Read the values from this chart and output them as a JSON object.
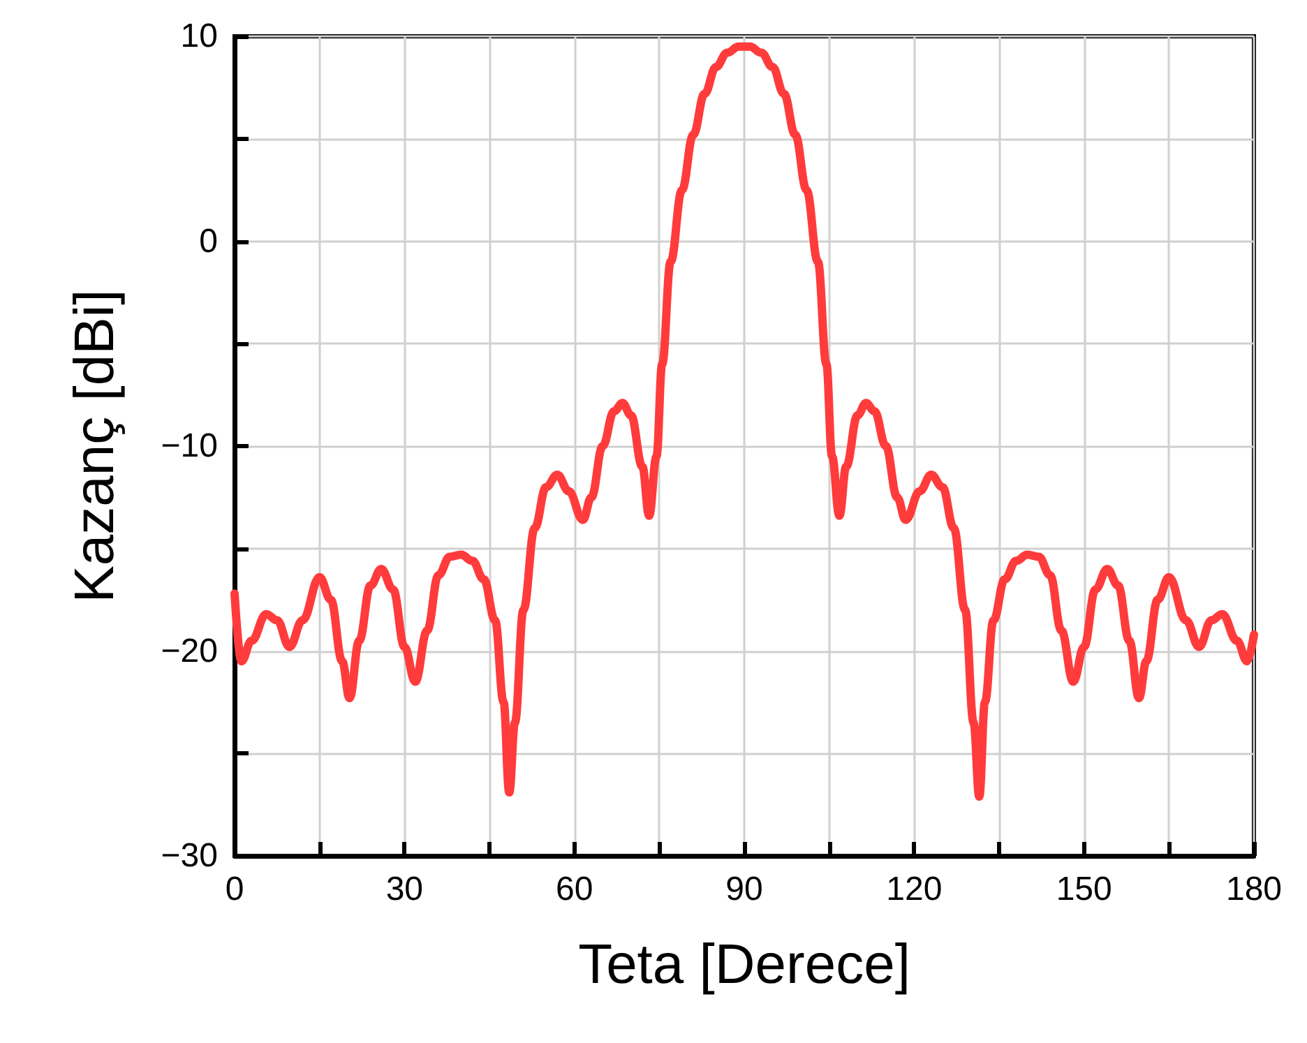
{
  "chart_data": {
    "type": "line",
    "xlabel": "Teta [Derece]",
    "ylabel": "Kazanç [dBi]",
    "xlim": [
      0,
      180
    ],
    "ylim": [
      -30,
      10
    ],
    "xticks": [
      0,
      {
        "value": 15,
        "label": null
      },
      30,
      {
        "value": 45,
        "label": null
      },
      60,
      {
        "value": 75,
        "label": null
      },
      90,
      {
        "value": 105,
        "label": null
      },
      120,
      {
        "value": 135,
        "label": null
      },
      150,
      {
        "value": 165,
        "label": null
      },
      180
    ],
    "yticks": [
      -30,
      {
        "value": -25,
        "label": null
      },
      -20,
      {
        "value": -15,
        "label": null
      },
      -10,
      {
        "value": -5,
        "label": null
      },
      0,
      {
        "value": 5,
        "label": null
      },
      10
    ],
    "grid": true,
    "marker": "none",
    "line_style": "solid",
    "series": [
      {
        "color": "#ff3b3b",
        "x": [
          0,
          1.2,
          3,
          5.6,
          7.5,
          9.7,
          12,
          15,
          17,
          19,
          20.3,
          22,
          24,
          25.9,
          28,
          30,
          31.9,
          34,
          36,
          38,
          40,
          42,
          44,
          46,
          47.5,
          48.5,
          49.5,
          51,
          53,
          55,
          57,
          59,
          61.5,
          63,
          65,
          67,
          68.5,
          70,
          72,
          73.2,
          74.5,
          75.5,
          77,
          79,
          81,
          83,
          85,
          87,
          89,
          90,
          91,
          93,
          95,
          97,
          99,
          101,
          103,
          104.5,
          105.5,
          106.8,
          108,
          110,
          111.5,
          113,
          115,
          117,
          118.5,
          121,
          123,
          125,
          127,
          129,
          130.5,
          131.5,
          132.5,
          134,
          136,
          138,
          140,
          142,
          144,
          146,
          148.1,
          150,
          152,
          154.1,
          156,
          158,
          159.7,
          161,
          163,
          165,
          168,
          170.3,
          172.5,
          174.4,
          177,
          178.8,
          180
        ],
        "values": [
          -17.2,
          -20.5,
          -19.5,
          -18.2,
          -18.5,
          -19.8,
          -18.5,
          -16.4,
          -17.5,
          -20.5,
          -22.3,
          -19.5,
          -16.8,
          -16.0,
          -17,
          -19.8,
          -21.5,
          -19,
          -16.3,
          -15.4,
          -15.3,
          -15.6,
          -16.5,
          -18.5,
          -22.5,
          -26.9,
          -23.5,
          -18,
          -14,
          -12,
          -11.4,
          -12.2,
          -13.6,
          -12.5,
          -10,
          -8.3,
          -7.9,
          -8.5,
          -11,
          -13.4,
          -10.5,
          -6,
          -1,
          2.5,
          5.2,
          7.2,
          8.5,
          9.2,
          9.5,
          9.5,
          9.5,
          9.2,
          8.5,
          7.2,
          5.2,
          2.5,
          -1,
          -6,
          -10.5,
          -13.4,
          -11,
          -8.5,
          -7.9,
          -8.3,
          -10,
          -12.5,
          -13.6,
          -12.2,
          -11.4,
          -12,
          -14,
          -18,
          -23.5,
          -27.1,
          -22.5,
          -18.5,
          -16.5,
          -15.6,
          -15.3,
          -15.4,
          -16.3,
          -19,
          -21.5,
          -19.8,
          -17,
          -16.0,
          -16.8,
          -19.5,
          -22.3,
          -20.5,
          -17.5,
          -16.4,
          -18.5,
          -19.8,
          -18.5,
          -18.2,
          -19.5,
          -20.5,
          -19.2
        ]
      }
    ]
  }
}
